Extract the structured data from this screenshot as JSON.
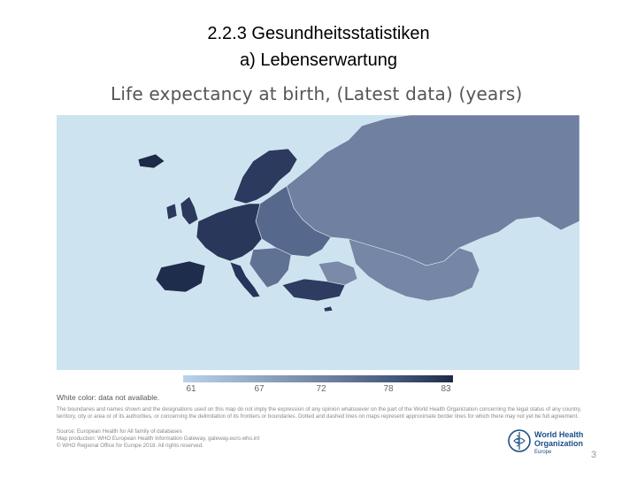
{
  "slide": {
    "title_line1": "2.2.3 Gesundheitsstatistiken",
    "title_line2": "a) Lebenserwartung",
    "page_number": "3"
  },
  "map": {
    "title": "Life expectancy at birth, (Latest data) (years)",
    "sea_color": "#cde4f0",
    "legend": {
      "ticks": [
        "61",
        "67",
        "72",
        "78",
        "83"
      ],
      "colors": [
        "#b9d3ea",
        "#8ea4c0",
        "#6d7f9e",
        "#465a7e",
        "#1d2a48"
      ]
    },
    "no_data_note": "White color: data not available.",
    "disclaimer": "The boundaries and names shown and the designations used on this map do not imply the expression of any opinion whatsoever on the part of the World Health Organization concerning the legal status of any country, territory, city or area or of its authorities, or concerning the delimitation of its frontiers or boundaries. Dotted and dashed lines on maps represent approximate border lines for which there may not yet be full agreement.",
    "source_lines": [
      "Source: European Health for All family of databases",
      "Map production: WHO European Health Information Gateway, gateway.euro.who.int",
      "© WHO Regional Office for Europe 2018. All rights reserved."
    ]
  },
  "logo": {
    "org_line1": "World Health",
    "org_line2": "Organization",
    "region": "Europe"
  }
}
